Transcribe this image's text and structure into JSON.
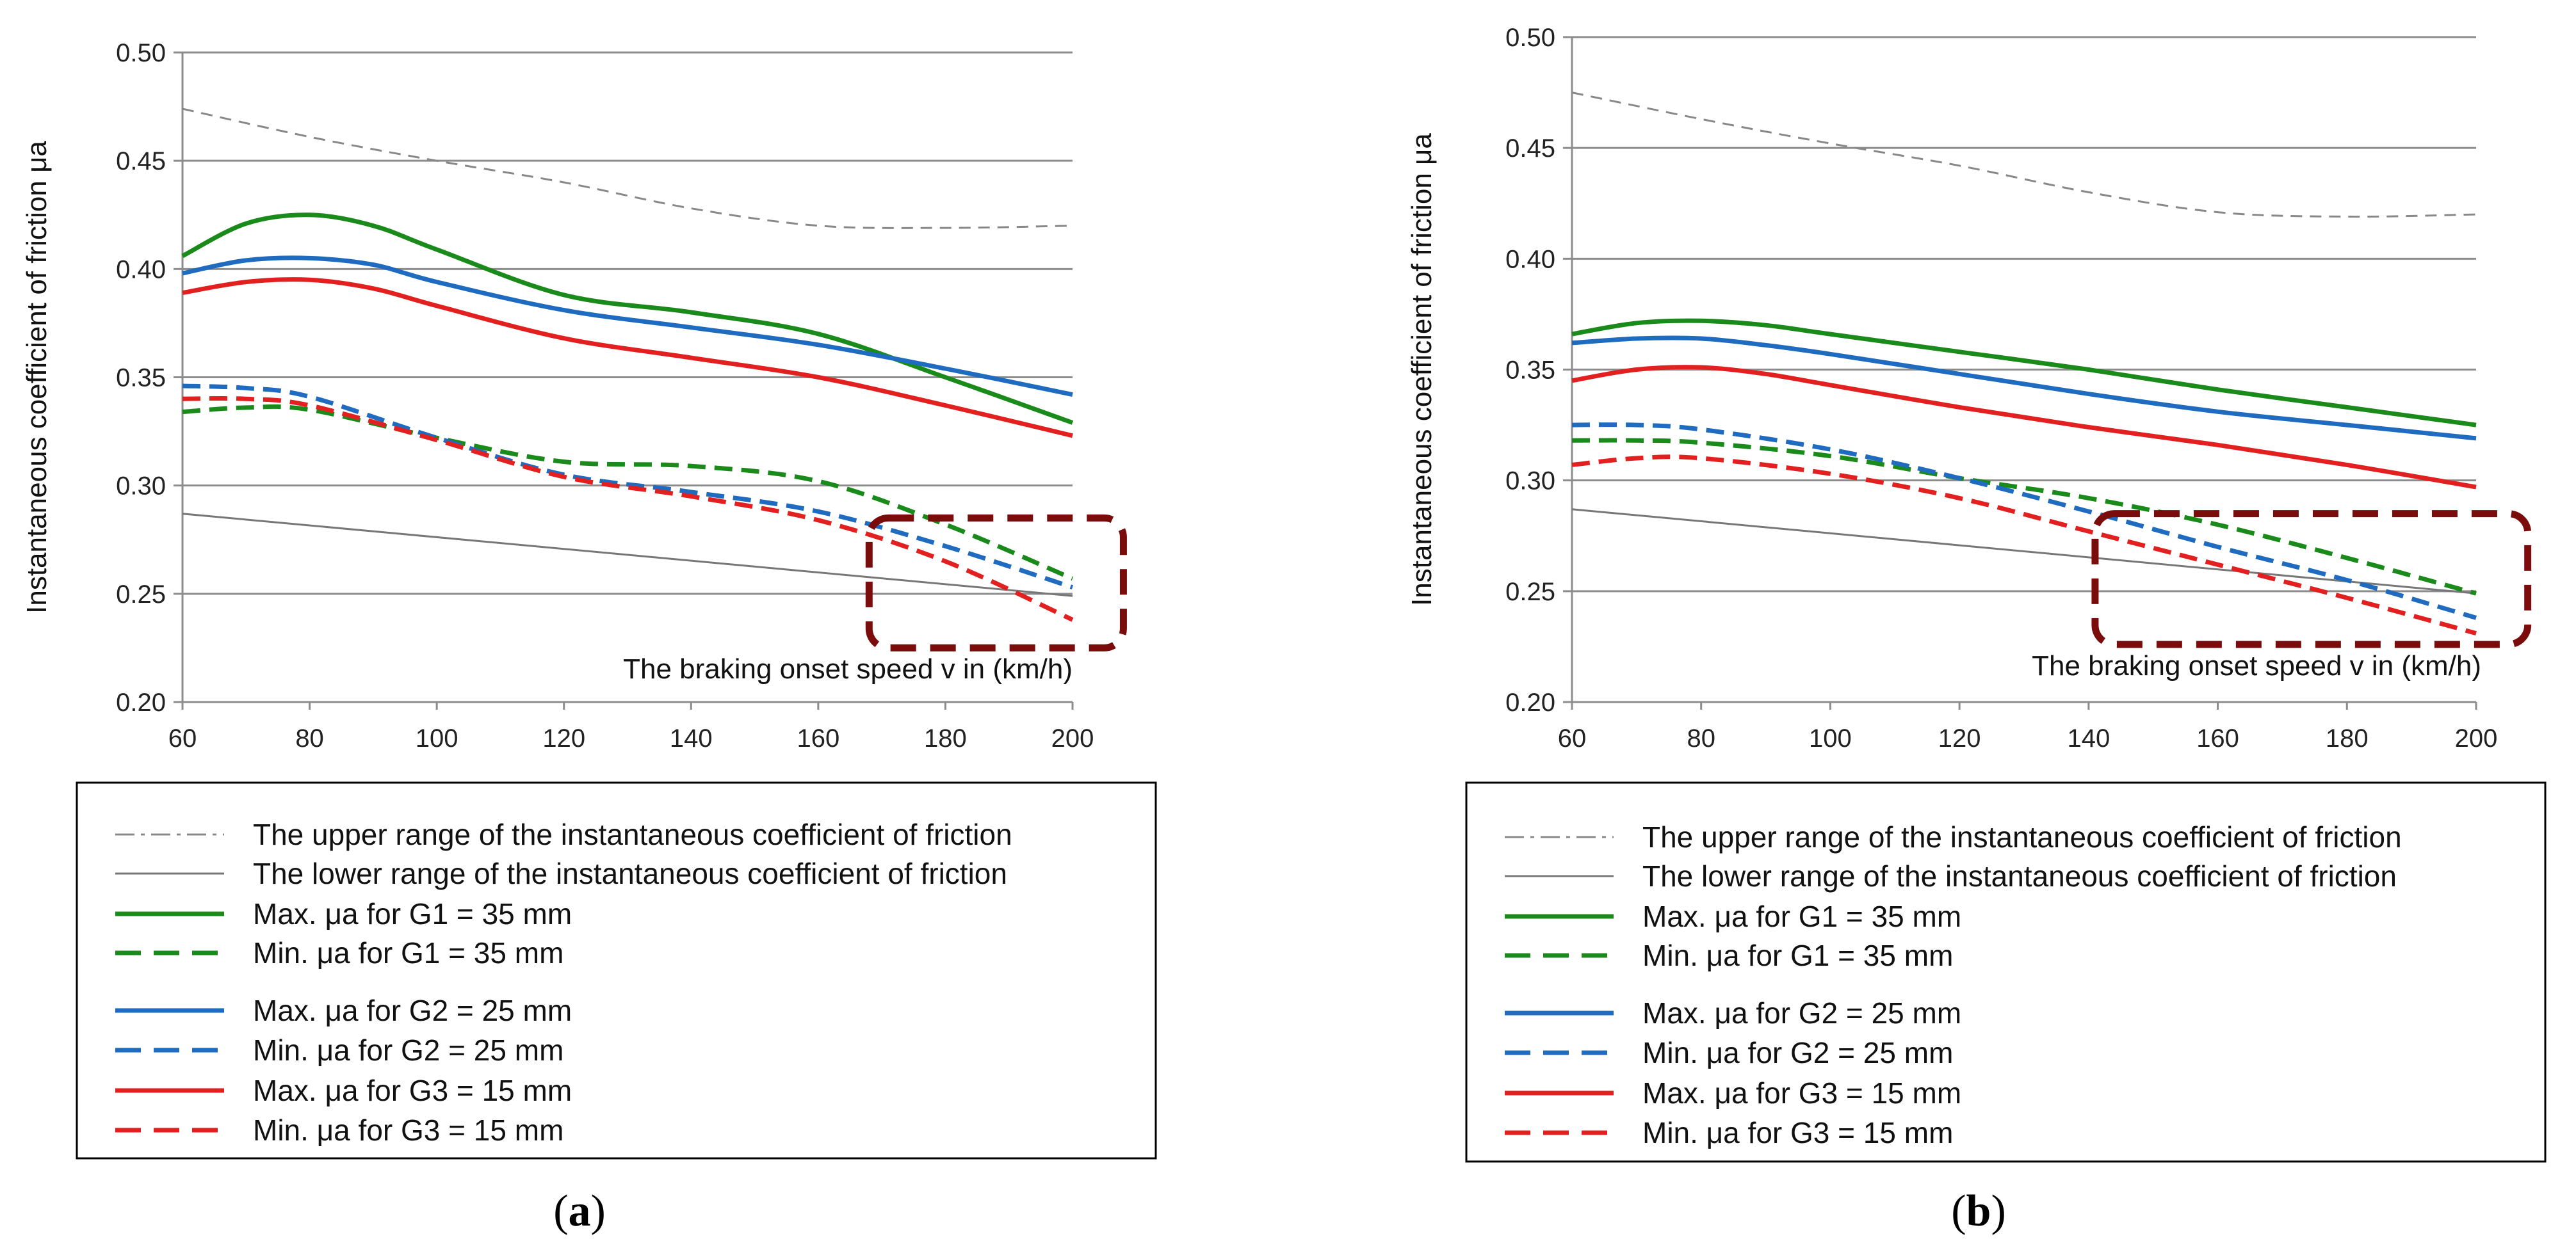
{
  "chart_data": [
    {
      "type": "line",
      "caption_letter": "a",
      "xlabel": "The braking onset speed v in (km/h)",
      "ylabel": "Instantaneous coefficient of friction μa",
      "xlim": [
        60,
        200
      ],
      "ylim": [
        0.2,
        0.5
      ],
      "x_ticks": [
        "60",
        "80",
        "100",
        "120",
        "140",
        "160",
        "180",
        "200"
      ],
      "y_ticks": [
        "0.20",
        "0.25",
        "0.30",
        "0.35",
        "0.40",
        "0.45",
        "0.50"
      ],
      "grid": "horizontal",
      "highlight_region": {
        "x": [
          168,
          208
        ],
        "y": [
          0.225,
          0.285
        ],
        "color": "#7b0c0c"
      },
      "series": [
        {
          "key": "upper",
          "name": "The upper range of the instantaneous coefficient of friction",
          "color": "#888888",
          "style": "dashdot",
          "x": [
            60,
            80,
            100,
            120,
            140,
            160,
            180,
            200
          ],
          "values": [
            0.474,
            0.461,
            0.45,
            0.44,
            0.428,
            0.42,
            0.419,
            0.42
          ]
        },
        {
          "key": "lower",
          "name": "The lower range of the instantaneous coefficient of friction",
          "color": "#777777",
          "style": "solid-thin",
          "x": [
            60,
            200
          ],
          "values": [
            0.287,
            0.249
          ]
        },
        {
          "key": "max_g1",
          "name": "Max. μa for G1 = 35 mm",
          "color": "#1a8a1a",
          "style": "solid",
          "x": [
            60,
            70,
            80,
            90,
            100,
            120,
            140,
            160,
            180,
            200
          ],
          "values": [
            0.406,
            0.421,
            0.425,
            0.42,
            0.409,
            0.388,
            0.38,
            0.37,
            0.35,
            0.329
          ]
        },
        {
          "key": "min_g1",
          "name": "Min. μa for G1 = 35 mm",
          "color": "#1a8a1a",
          "style": "dashed",
          "x": [
            60,
            70,
            80,
            100,
            120,
            140,
            160,
            180,
            200
          ],
          "values": [
            0.334,
            0.336,
            0.335,
            0.322,
            0.311,
            0.309,
            0.302,
            0.282,
            0.257
          ]
        },
        {
          "key": "max_g2",
          "name": "Max. μa for G2 = 25 mm",
          "color": "#1f6bbf",
          "style": "solid",
          "x": [
            60,
            70,
            80,
            90,
            100,
            120,
            140,
            160,
            180,
            200
          ],
          "values": [
            0.398,
            0.404,
            0.405,
            0.402,
            0.394,
            0.381,
            0.373,
            0.365,
            0.354,
            0.342
          ]
        },
        {
          "key": "min_g2",
          "name": "Min. μa for G2 = 25 mm",
          "color": "#1f6bbf",
          "style": "dashed",
          "x": [
            60,
            70,
            80,
            100,
            120,
            140,
            160,
            180,
            200
          ],
          "values": [
            0.346,
            0.345,
            0.341,
            0.322,
            0.305,
            0.297,
            0.288,
            0.272,
            0.253
          ]
        },
        {
          "key": "max_g3",
          "name": "Max. μa for G3 = 15 mm",
          "color": "#e32020",
          "style": "solid",
          "x": [
            60,
            70,
            80,
            90,
            100,
            120,
            140,
            160,
            180,
            200
          ],
          "values": [
            0.389,
            0.394,
            0.395,
            0.391,
            0.383,
            0.368,
            0.359,
            0.35,
            0.337,
            0.323
          ]
        },
        {
          "key": "min_g3",
          "name": "Min. μa for G3 = 15 mm",
          "color": "#e32020",
          "style": "dashed",
          "x": [
            60,
            70,
            80,
            100,
            120,
            140,
            160,
            180,
            200
          ],
          "values": [
            0.34,
            0.34,
            0.337,
            0.321,
            0.304,
            0.295,
            0.284,
            0.265,
            0.238
          ]
        }
      ]
    },
    {
      "type": "line",
      "caption_letter": "b",
      "xlabel": "The braking onset speed v in (km/h)",
      "ylabel": "Instantaneous coefficient of friction μa",
      "xlim": [
        60,
        200
      ],
      "ylim": [
        0.2,
        0.5
      ],
      "x_ticks": [
        "60",
        "80",
        "100",
        "120",
        "140",
        "160",
        "180",
        "200"
      ],
      "y_ticks": [
        "0.20",
        "0.25",
        "0.30",
        "0.35",
        "0.40",
        "0.45",
        "0.50"
      ],
      "grid": "horizontal",
      "highlight_region": {
        "x": [
          141,
          208
        ],
        "y": [
          0.226,
          0.285
        ],
        "color": "#7b0c0c"
      },
      "series": [
        {
          "key": "upper",
          "name": "The upper range of the instantaneous coefficient of friction",
          "color": "#888888",
          "style": "dashdot",
          "x": [
            60,
            80,
            100,
            120,
            140,
            160,
            180,
            200
          ],
          "values": [
            0.475,
            0.463,
            0.452,
            0.442,
            0.43,
            0.421,
            0.419,
            0.42
          ]
        },
        {
          "key": "lower",
          "name": "The lower range of the instantaneous coefficient of friction",
          "color": "#777777",
          "style": "solid-thin",
          "x": [
            60,
            200
          ],
          "values": [
            0.287,
            0.249
          ]
        },
        {
          "key": "max_g1",
          "name": "Max. μa for G1 = 35 mm",
          "color": "#1a8a1a",
          "style": "solid",
          "x": [
            60,
            70,
            80,
            90,
            100,
            120,
            140,
            160,
            180,
            200
          ],
          "values": [
            0.366,
            0.371,
            0.372,
            0.37,
            0.366,
            0.358,
            0.35,
            0.341,
            0.333,
            0.325
          ]
        },
        {
          "key": "min_g1",
          "name": "Min. μa for G1 = 35 mm",
          "color": "#1a8a1a",
          "style": "dashed",
          "x": [
            60,
            70,
            80,
            100,
            120,
            140,
            160,
            180,
            200
          ],
          "values": [
            0.318,
            0.318,
            0.317,
            0.311,
            0.301,
            0.292,
            0.28,
            0.265,
            0.249
          ]
        },
        {
          "key": "max_g2",
          "name": "Max. μa for G2 = 25 mm",
          "color": "#1f6bbf",
          "style": "solid",
          "x": [
            60,
            70,
            80,
            90,
            100,
            120,
            140,
            160,
            180,
            200
          ],
          "values": [
            0.362,
            0.364,
            0.364,
            0.361,
            0.357,
            0.348,
            0.339,
            0.331,
            0.325,
            0.319
          ]
        },
        {
          "key": "min_g2",
          "name": "Min. μa for G2 = 25 mm",
          "color": "#1f6bbf",
          "style": "dashed",
          "x": [
            60,
            70,
            80,
            100,
            120,
            140,
            160,
            180,
            200
          ],
          "values": [
            0.325,
            0.325,
            0.323,
            0.314,
            0.301,
            0.286,
            0.27,
            0.255,
            0.238
          ]
        },
        {
          "key": "max_g3",
          "name": "Max. μa for G3 = 15 mm",
          "color": "#e32020",
          "style": "solid",
          "x": [
            60,
            70,
            80,
            90,
            100,
            120,
            140,
            160,
            180,
            200
          ],
          "values": [
            0.345,
            0.35,
            0.351,
            0.348,
            0.343,
            0.333,
            0.324,
            0.316,
            0.307,
            0.297
          ]
        },
        {
          "key": "min_g3",
          "name": "Min. μa for G3 = 15 mm",
          "color": "#e32020",
          "style": "dashed",
          "x": [
            60,
            70,
            80,
            100,
            120,
            140,
            160,
            180,
            200
          ],
          "values": [
            0.307,
            0.31,
            0.31,
            0.303,
            0.292,
            0.277,
            0.262,
            0.247,
            0.231
          ]
        }
      ]
    }
  ]
}
